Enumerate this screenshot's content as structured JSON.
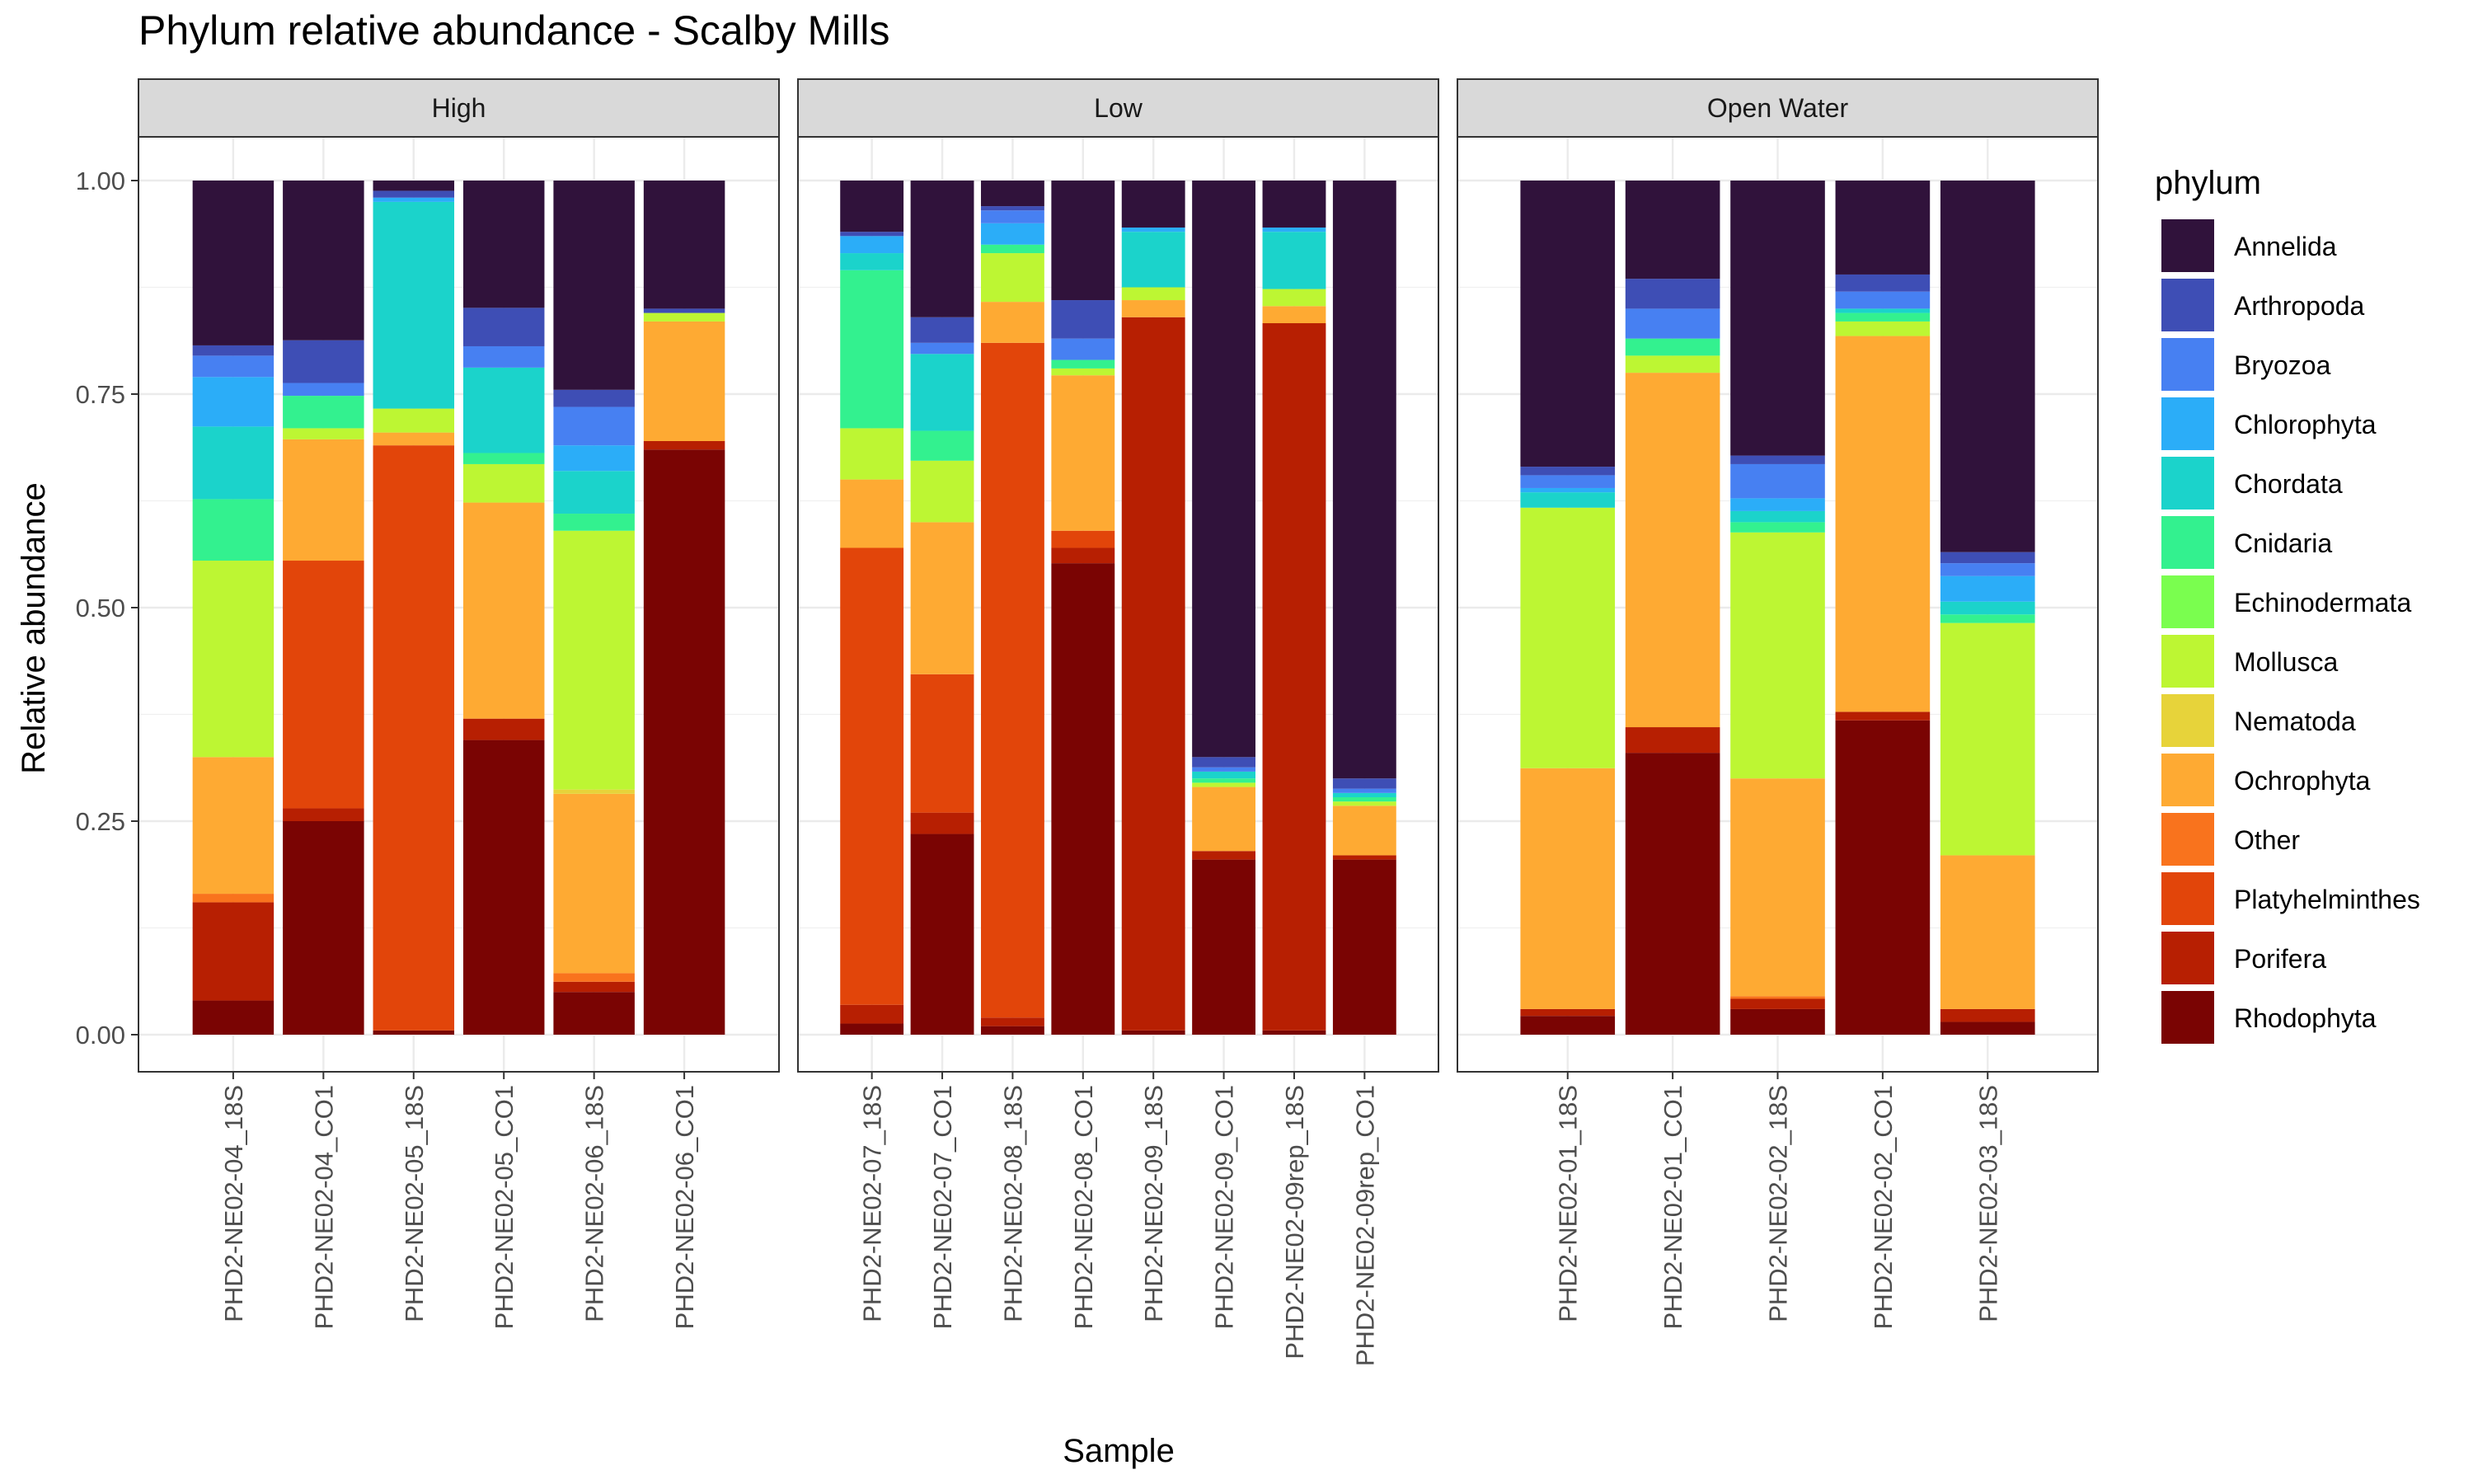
{
  "chart_data": {
    "type": "bar",
    "stacked": true,
    "title": "Phylum relative abundance - Scalby Mills",
    "xlabel": "Sample",
    "ylabel": "Relative abundance",
    "ylim": [
      0,
      1
    ],
    "yticks": [
      "0.00",
      "0.25",
      "0.50",
      "0.75",
      "1.00"
    ],
    "grid": true,
    "legend": {
      "title": "phylum",
      "placement": "right"
    },
    "phyla": [
      "Annelida",
      "Arthropoda",
      "Bryozoa",
      "Chlorophyta",
      "Chordata",
      "Cnidaria",
      "Echinodermata",
      "Mollusca",
      "Nematoda",
      "Ochrophyta",
      "Other",
      "Platyhelminthes",
      "Porifera",
      "Rhodophyta"
    ],
    "colors": {
      "Annelida": "#30123B",
      "Arthropoda": "#3E4EB5",
      "Bryozoa": "#4780F2",
      "Chlorophyta": "#2BADF8",
      "Chordata": "#1BD3CB",
      "Cnidaria": "#33F18F",
      "Echinodermata": "#7AFE4F",
      "Mollusca": "#BDF633",
      "Nematoda": "#E7D33A",
      "Ochrophyta": "#FEAA33",
      "Other": "#F9731D",
      "Platyhelminthes": "#E2450A",
      "Porifera": "#B71F02",
      "Rhodophyta": "#7A0403"
    },
    "panels": [
      {
        "label": "High",
        "samples": [
          {
            "name": "PHD2-NE02-04_18S",
            "values": {
              "Rhodophyta": 0.04,
              "Porifera": 0.115,
              "Other": 0.01,
              "Platyhelminthes": 0.0,
              "Ochrophyta": 0.16,
              "Nematoda": 0.0,
              "Mollusca": 0.23,
              "Echinodermata": 0.0,
              "Cnidaria": 0.072,
              "Chordata": 0.085,
              "Chlorophyta": 0.058,
              "Bryozoa": 0.025,
              "Arthropoda": 0.012,
              "Annelida": 0.193
            }
          },
          {
            "name": "PHD2-NE02-04_CO1",
            "values": {
              "Rhodophyta": 0.25,
              "Porifera": 0.015,
              "Other": 0.0,
              "Platyhelminthes": 0.29,
              "Ochrophyta": 0.142,
              "Nematoda": 0.0,
              "Mollusca": 0.013,
              "Echinodermata": 0.0,
              "Cnidaria": 0.038,
              "Chordata": 0.0,
              "Chlorophyta": 0.0,
              "Bryozoa": 0.015,
              "Arthropoda": 0.05,
              "Annelida": 0.187
            }
          },
          {
            "name": "PHD2-NE02-05_18S",
            "values": {
              "Rhodophyta": 0.005,
              "Porifera": 0.0,
              "Other": 0.0,
              "Platyhelminthes": 0.685,
              "Ochrophyta": 0.015,
              "Nematoda": 0.0,
              "Mollusca": 0.028,
              "Echinodermata": 0.0,
              "Cnidaria": 0.0,
              "Chordata": 0.242,
              "Chlorophyta": 0.005,
              "Bryozoa": 0.0,
              "Arthropoda": 0.008,
              "Annelida": 0.012
            }
          },
          {
            "name": "PHD2-NE02-05_CO1",
            "values": {
              "Rhodophyta": 0.345,
              "Porifera": 0.025,
              "Other": 0.0,
              "Platyhelminthes": 0.0,
              "Ochrophyta": 0.253,
              "Nematoda": 0.0,
              "Mollusca": 0.045,
              "Echinodermata": 0.0,
              "Cnidaria": 0.013,
              "Chordata": 0.1,
              "Chlorophyta": 0.0,
              "Bryozoa": 0.025,
              "Arthropoda": 0.045,
              "Annelida": 0.149
            }
          },
          {
            "name": "PHD2-NE02-06_18S",
            "values": {
              "Rhodophyta": 0.05,
              "Porifera": 0.012,
              "Other": 0.01,
              "Platyhelminthes": 0.0,
              "Ochrophyta": 0.21,
              "Nematoda": 0.005,
              "Mollusca": 0.303,
              "Echinodermata": 0.0,
              "Cnidaria": 0.02,
              "Chordata": 0.05,
              "Chlorophyta": 0.03,
              "Bryozoa": 0.045,
              "Arthropoda": 0.02,
              "Annelida": 0.245
            }
          },
          {
            "name": "PHD2-NE02-06_CO1",
            "values": {
              "Rhodophyta": 0.685,
              "Porifera": 0.01,
              "Other": 0.0,
              "Platyhelminthes": 0.0,
              "Ochrophyta": 0.14,
              "Nematoda": 0.0,
              "Mollusca": 0.01,
              "Echinodermata": 0.0,
              "Cnidaria": 0.0,
              "Chordata": 0.0,
              "Chlorophyta": 0.0,
              "Bryozoa": 0.0,
              "Arthropoda": 0.005,
              "Annelida": 0.15
            }
          }
        ]
      },
      {
        "label": "Low",
        "samples": [
          {
            "name": "PHD2-NE02-07_18S",
            "values": {
              "Rhodophyta": 0.013,
              "Porifera": 0.022,
              "Other": 0.0,
              "Platyhelminthes": 0.535,
              "Ochrophyta": 0.08,
              "Nematoda": 0.0,
              "Mollusca": 0.06,
              "Echinodermata": 0.0,
              "Cnidaria": 0.185,
              "Chordata": 0.02,
              "Chlorophyta": 0.02,
              "Bryozoa": 0.0,
              "Arthropoda": 0.005,
              "Annelida": 0.06
            }
          },
          {
            "name": "PHD2-NE02-07_CO1",
            "values": {
              "Rhodophyta": 0.235,
              "Porifera": 0.025,
              "Other": 0.0,
              "Platyhelminthes": 0.162,
              "Ochrophyta": 0.178,
              "Nematoda": 0.0,
              "Mollusca": 0.072,
              "Echinodermata": 0.0,
              "Cnidaria": 0.035,
              "Chordata": 0.09,
              "Chlorophyta": 0.0,
              "Bryozoa": 0.013,
              "Arthropoda": 0.03,
              "Annelida": 0.16
            }
          },
          {
            "name": "PHD2-NE02-08_18S",
            "values": {
              "Rhodophyta": 0.01,
              "Porifera": 0.01,
              "Other": 0.0,
              "Platyhelminthes": 0.79,
              "Ochrophyta": 0.048,
              "Nematoda": 0.0,
              "Mollusca": 0.057,
              "Echinodermata": 0.0,
              "Cnidaria": 0.01,
              "Chordata": 0.0,
              "Chlorophyta": 0.025,
              "Bryozoa": 0.015,
              "Arthropoda": 0.005,
              "Annelida": 0.03
            }
          },
          {
            "name": "PHD2-NE02-08_CO1",
            "values": {
              "Rhodophyta": 0.552,
              "Porifera": 0.018,
              "Other": 0.0,
              "Platyhelminthes": 0.02,
              "Ochrophyta": 0.182,
              "Nematoda": 0.0,
              "Mollusca": 0.008,
              "Echinodermata": 0.0,
              "Cnidaria": 0.01,
              "Chordata": 0.0,
              "Chlorophyta": 0.0,
              "Bryozoa": 0.025,
              "Arthropoda": 0.045,
              "Annelida": 0.14
            }
          },
          {
            "name": "PHD2-NE02-09_18S",
            "values": {
              "Rhodophyta": 0.005,
              "Porifera": 0.835,
              "Other": 0.0,
              "Platyhelminthes": 0.0,
              "Ochrophyta": 0.02,
              "Nematoda": 0.0,
              "Mollusca": 0.015,
              "Echinodermata": 0.0,
              "Cnidaria": 0.0,
              "Chordata": 0.065,
              "Chlorophyta": 0.005,
              "Bryozoa": 0.0,
              "Arthropoda": 0.0,
              "Annelida": 0.055
            }
          },
          {
            "name": "PHD2-NE02-09_CO1",
            "values": {
              "Rhodophyta": 0.205,
              "Porifera": 0.01,
              "Other": 0.0,
              "Platyhelminthes": 0.0,
              "Ochrophyta": 0.075,
              "Nematoda": 0.0,
              "Mollusca": 0.005,
              "Echinodermata": 0.0,
              "Cnidaria": 0.005,
              "Chordata": 0.008,
              "Chlorophyta": 0.0,
              "Bryozoa": 0.005,
              "Arthropoda": 0.012,
              "Annelida": 0.675
            }
          },
          {
            "name": "PHD2-NE02-09rep_18S",
            "values": {
              "Rhodophyta": 0.005,
              "Porifera": 0.828,
              "Other": 0.0,
              "Platyhelminthes": 0.0,
              "Ochrophyta": 0.02,
              "Nematoda": 0.0,
              "Mollusca": 0.02,
              "Echinodermata": 0.0,
              "Cnidaria": 0.0,
              "Chordata": 0.067,
              "Chlorophyta": 0.005,
              "Bryozoa": 0.0,
              "Arthropoda": 0.0,
              "Annelida": 0.055
            }
          },
          {
            "name": "PHD2-NE02-09rep_CO1",
            "values": {
              "Rhodophyta": 0.205,
              "Porifera": 0.005,
              "Other": 0.0,
              "Platyhelminthes": 0.0,
              "Ochrophyta": 0.058,
              "Nematoda": 0.0,
              "Mollusca": 0.005,
              "Echinodermata": 0.0,
              "Cnidaria": 0.005,
              "Chordata": 0.005,
              "Chlorophyta": 0.0,
              "Bryozoa": 0.005,
              "Arthropoda": 0.012,
              "Annelida": 0.7
            }
          }
        ]
      },
      {
        "label": "Open Water",
        "samples": [
          {
            "name": "PHD2-NE02-01_18S",
            "values": {
              "Rhodophyta": 0.022,
              "Porifera": 0.008,
              "Other": 0.0,
              "Platyhelminthes": 0.0,
              "Ochrophyta": 0.282,
              "Nematoda": 0.0,
              "Mollusca": 0.305,
              "Echinodermata": 0.0,
              "Cnidaria": 0.0,
              "Chordata": 0.018,
              "Chlorophyta": 0.005,
              "Bryozoa": 0.015,
              "Arthropoda": 0.01,
              "Annelida": 0.335
            }
          },
          {
            "name": "PHD2-NE02-01_CO1",
            "values": {
              "Rhodophyta": 0.33,
              "Porifera": 0.03,
              "Other": 0.0,
              "Platyhelminthes": 0.0,
              "Ochrophyta": 0.415,
              "Nematoda": 0.0,
              "Mollusca": 0.02,
              "Echinodermata": 0.0,
              "Cnidaria": 0.02,
              "Chordata": 0.0,
              "Chlorophyta": 0.0,
              "Bryozoa": 0.035,
              "Arthropoda": 0.035,
              "Annelida": 0.115
            }
          },
          {
            "name": "PHD2-NE02-02_18S",
            "values": {
              "Rhodophyta": 0.03,
              "Porifera": 0.012,
              "Other": 0.003,
              "Platyhelminthes": 0.0,
              "Ochrophyta": 0.255,
              "Nematoda": 0.0,
              "Mollusca": 0.288,
              "Echinodermata": 0.0,
              "Cnidaria": 0.012,
              "Chordata": 0.013,
              "Chlorophyta": 0.015,
              "Bryozoa": 0.04,
              "Arthropoda": 0.01,
              "Annelida": 0.322
            }
          },
          {
            "name": "PHD2-NE02-02_CO1",
            "values": {
              "Rhodophyta": 0.368,
              "Porifera": 0.01,
              "Other": 0.0,
              "Platyhelminthes": 0.0,
              "Ochrophyta": 0.44,
              "Nematoda": 0.0,
              "Mollusca": 0.017,
              "Echinodermata": 0.0,
              "Cnidaria": 0.01,
              "Chordata": 0.005,
              "Chlorophyta": 0.0,
              "Bryozoa": 0.02,
              "Arthropoda": 0.02,
              "Annelida": 0.11
            }
          },
          {
            "name": "PHD2-NE02-03_18S",
            "values": {
              "Rhodophyta": 0.015,
              "Porifera": 0.015,
              "Other": 0.0,
              "Platyhelminthes": 0.0,
              "Ochrophyta": 0.18,
              "Nematoda": 0.0,
              "Mollusca": 0.272,
              "Echinodermata": 0.0,
              "Cnidaria": 0.01,
              "Chordata": 0.015,
              "Chlorophyta": 0.03,
              "Bryozoa": 0.015,
              "Arthropoda": 0.013,
              "Annelida": 0.435
            }
          }
        ]
      }
    ]
  }
}
